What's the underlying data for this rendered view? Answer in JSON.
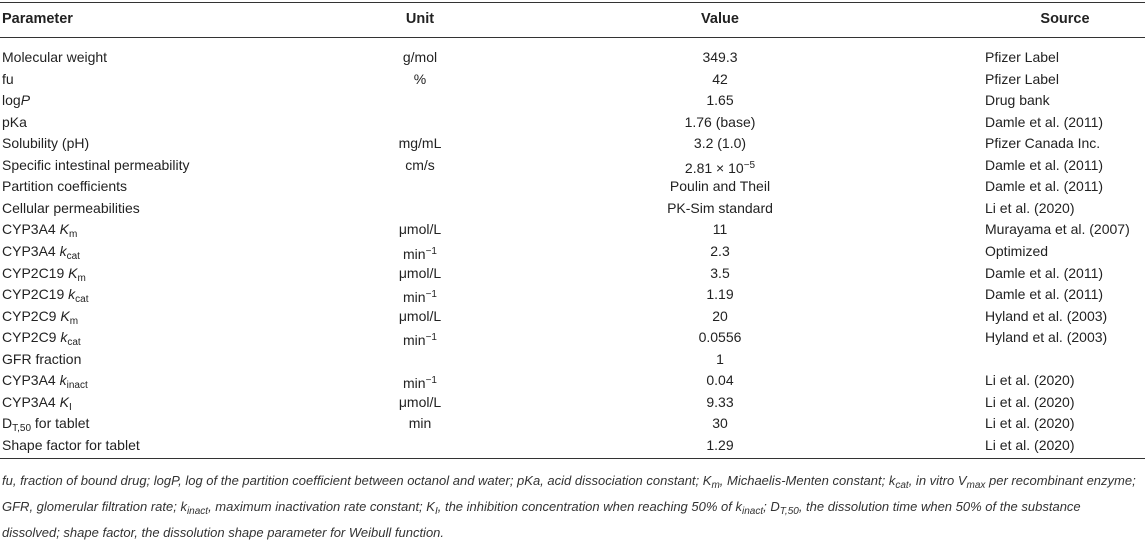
{
  "table": {
    "header": [
      "Parameter",
      "Unit",
      "Value",
      "Source"
    ],
    "rows": [
      [
        "Molecular weight",
        "g/mol",
        "349.3",
        "Pfizer Label"
      ],
      [
        "fu",
        "%",
        "42",
        "Pfizer Label"
      ],
      [
        [
          "log",
          {
            "text": "P",
            "style": "italic"
          }
        ],
        null,
        "1.65",
        "Drug bank"
      ],
      [
        "pKa",
        null,
        "1.76 (base)",
        "Damle et al. (2011)"
      ],
      [
        "Solubility (pH)",
        "mg/mL",
        "3.2 (1.0)",
        "Pfizer Canada Inc."
      ],
      [
        "Specific intestinal permeability",
        "cm/s",
        [
          "2.81 × 10",
          {
            "text": "−5",
            "style": "sup"
          }
        ],
        "Damle et al. (2011)"
      ],
      [
        "Partition coefficients",
        null,
        "Poulin and Theil",
        "Damle et al. (2011)"
      ],
      [
        "Cellular permeabilities",
        null,
        "PK-Sim standard",
        "Li et al. (2020)"
      ],
      [
        [
          "CYP3A4 ",
          {
            "text": "K",
            "style": "italic"
          },
          {
            "text": "m",
            "style": "sub"
          }
        ],
        "μmol/L",
        "11",
        "Murayama et al. (2007)"
      ],
      [
        [
          "CYP3A4 ",
          {
            "text": "k",
            "style": "italic"
          },
          {
            "text": "cat",
            "style": "sub"
          }
        ],
        [
          "min",
          {
            "text": "−1",
            "style": "sup"
          }
        ],
        "2.3",
        "Optimized"
      ],
      [
        [
          "CYP2C19 ",
          {
            "text": "K",
            "style": "italic"
          },
          {
            "text": "m",
            "style": "sub"
          }
        ],
        "μmol/L",
        "3.5",
        "Damle et al. (2011)"
      ],
      [
        [
          "CYP2C19 ",
          {
            "text": "k",
            "style": "italic"
          },
          {
            "text": "cat",
            "style": "sub"
          }
        ],
        [
          "min",
          {
            "text": "−1",
            "style": "sup"
          }
        ],
        "1.19",
        "Damle et al. (2011)"
      ],
      [
        [
          "CYP2C9 ",
          {
            "text": "K",
            "style": "italic"
          },
          {
            "text": "m",
            "style": "sub"
          }
        ],
        "μmol/L",
        "20",
        "Hyland et al. (2003)"
      ],
      [
        [
          "CYP2C9 ",
          {
            "text": "k",
            "style": "italic"
          },
          {
            "text": "cat",
            "style": "sub"
          }
        ],
        [
          "min",
          {
            "text": "−1",
            "style": "sup"
          }
        ],
        "0.0556",
        "Hyland et al. (2003)"
      ],
      [
        "GFR fraction",
        null,
        "1",
        null
      ],
      [
        [
          "CYP3A4 ",
          {
            "text": "k",
            "style": "italic"
          },
          {
            "text": "inact",
            "style": "sub"
          }
        ],
        [
          "min",
          {
            "text": "−1",
            "style": "sup"
          }
        ],
        "0.04",
        "Li et al. (2020)"
      ],
      [
        [
          "CYP3A4 ",
          {
            "text": "K",
            "style": "italic"
          },
          {
            "text": "I",
            "style": "sub"
          }
        ],
        "μmol/L",
        "9.33",
        "Li et al. (2020)"
      ],
      [
        [
          "D",
          {
            "text": "T,50",
            "style": "sub"
          },
          " for tablet"
        ],
        "min",
        "30",
        "Li et al. (2020)"
      ],
      [
        "Shape factor for tablet",
        null,
        "1.29",
        "Li et al. (2020)"
      ]
    ]
  },
  "footnote": [
    "fu, fraction of bound drug; logP, log of the partition coefficient between octanol and water; pKa, acid dissociation constant; K",
    {
      "text": "m",
      "style": "sub"
    },
    ", Michaelis-Menten constant; k",
    {
      "text": "cat",
      "style": "sub"
    },
    ", in vitro V",
    {
      "text": "max",
      "style": "sub"
    },
    " per recombinant enzyme; GFR, glomerular filtration rate; k",
    {
      "text": "inact",
      "style": "sub"
    },
    ", maximum inactivation rate constant; K",
    {
      "text": "I",
      "style": "sub"
    },
    ", the inhibition concentration when reaching 50% of k",
    {
      "text": "inact",
      "style": "sub"
    },
    "; D",
    {
      "text": "T,50",
      "style": "sub"
    },
    ", the dissolution time when 50% of the substance dissolved; shape factor, the dissolution shape parameter for Weibull function."
  ]
}
